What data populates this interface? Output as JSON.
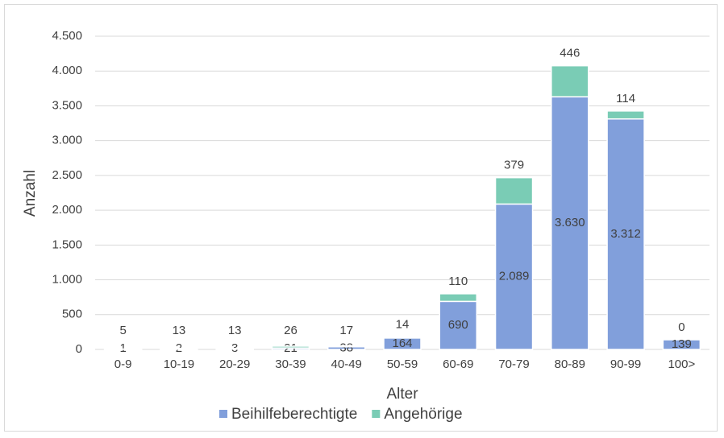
{
  "chart_data": {
    "type": "stacked_bar",
    "x_label": "Alter",
    "y_label": "Anzahl",
    "categories": [
      "0-9",
      "10-19",
      "20-29",
      "30-39",
      "40-49",
      "50-59",
      "60-69",
      "70-79",
      "80-89",
      "90-99",
      "100>"
    ],
    "series": [
      {
        "name": "Beihilfeberechtigte",
        "color": "#819fdb",
        "values": [
          1,
          2,
          3,
          21,
          38,
          164,
          690,
          2089,
          3630,
          3312,
          139
        ],
        "value_labels": [
          "1",
          "2",
          "3",
          "21",
          "38",
          "164",
          "690",
          "2.089",
          "3.630",
          "3.312",
          "139"
        ]
      },
      {
        "name": "Angehörige",
        "color": "#7accb5",
        "values": [
          5,
          13,
          13,
          26,
          17,
          14,
          110,
          379,
          446,
          114,
          0
        ],
        "value_labels": [
          "5",
          "13",
          "13",
          "26",
          "17",
          "14",
          "110",
          "379",
          "446",
          "114",
          "0"
        ]
      }
    ],
    "ylim": [
      0,
      4500
    ],
    "yticks": [
      0,
      500,
      {
        "value": 1000,
        "label": "1.000"
      },
      {
        "value": 1500,
        "label": "1.500"
      },
      {
        "value": 2000,
        "label": "2.000"
      },
      {
        "value": 2500,
        "label": "2.500"
      },
      {
        "value": 3000,
        "label": "3.000"
      },
      {
        "value": 3500,
        "label": "3.500"
      },
      {
        "value": 4000,
        "label": "4.000"
      },
      {
        "value": 4500,
        "label": "4.500"
      }
    ],
    "grid": true,
    "legend": "bottom"
  }
}
